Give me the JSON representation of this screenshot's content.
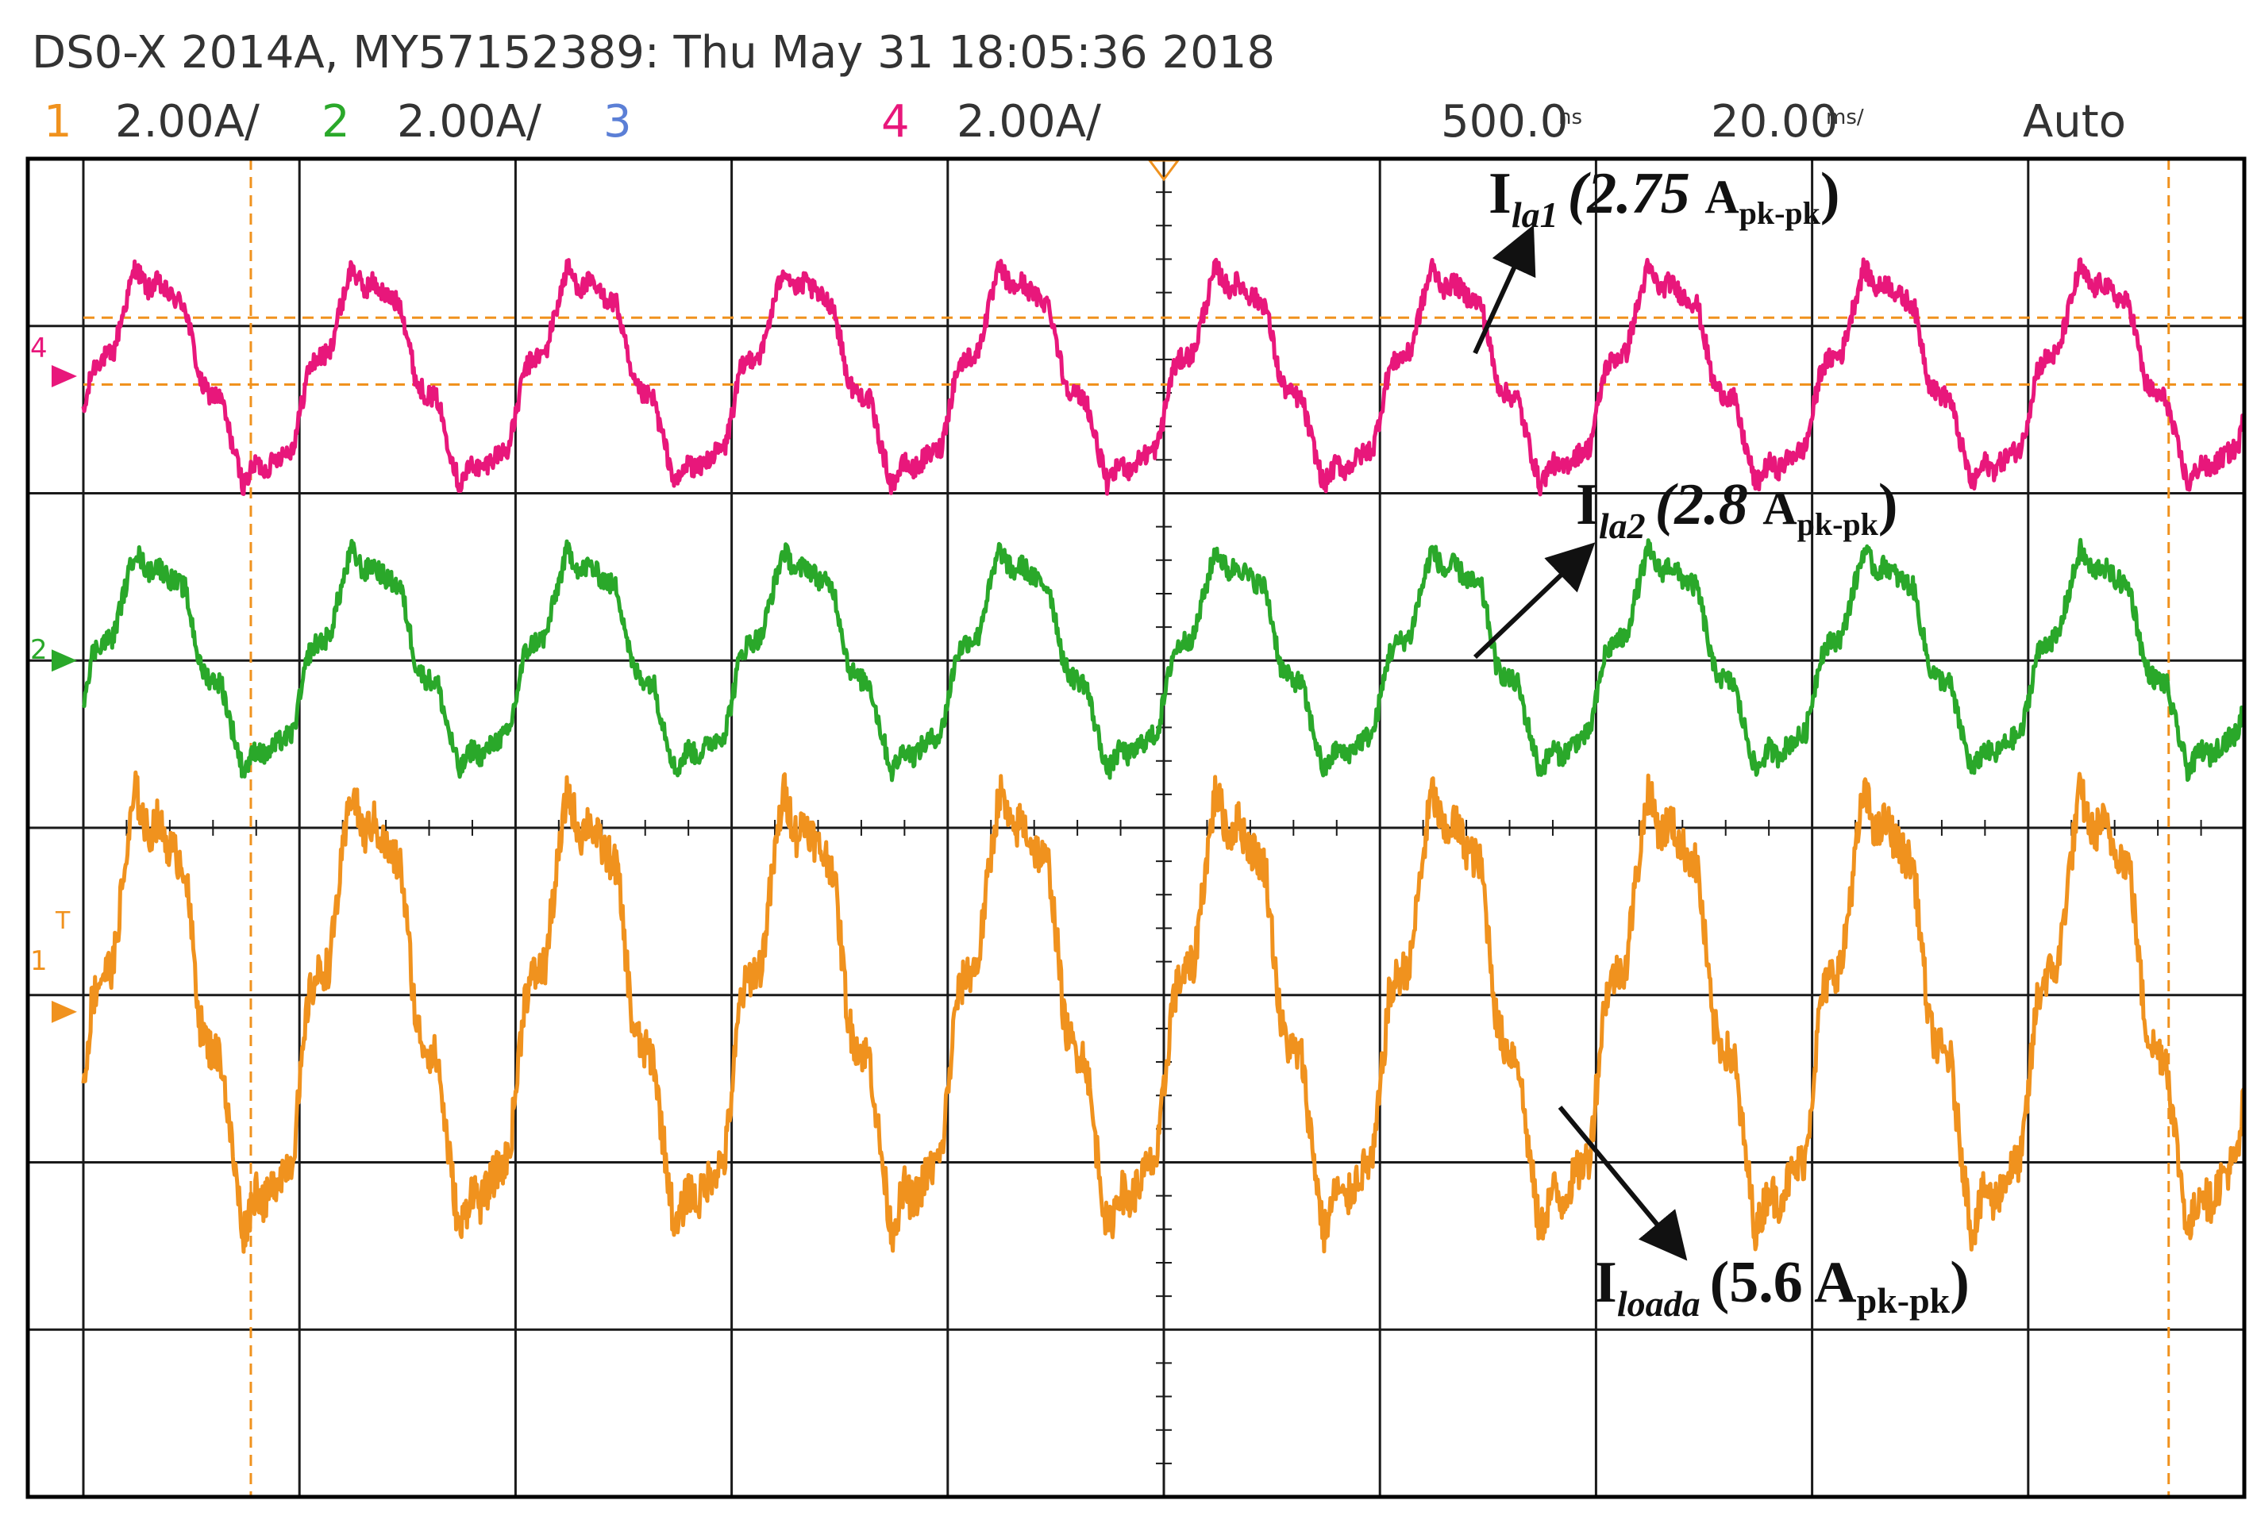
{
  "header": {
    "title": "DS0-X 2014A, MY57152389: Thu May 31 18:05:36 2018",
    "channels": [
      {
        "num": "1",
        "scale": "2.00A/",
        "color": "#f0921e"
      },
      {
        "num": "2",
        "scale": "2.00A/",
        "color": "#2aa82a"
      },
      {
        "num": "3",
        "scale": "",
        "color": "#5b7fd6"
      },
      {
        "num": "4",
        "scale": "2.00A/",
        "color": "#e8177b"
      }
    ],
    "delay": "500.0",
    "delay_unit": "ns",
    "timebase": "20.00",
    "timebase_unit": "ms/",
    "trigger_mode": "Auto"
  },
  "markers": {
    "ch4": "4",
    "ch2": "2",
    "ch1": "1",
    "trigger": "T"
  },
  "annotations": {
    "ila1": {
      "main": "I",
      "sub": "la1",
      "value": "(2.75 ",
      "unit_main": "A",
      "unit_sub": "pk-pk",
      "close": ")"
    },
    "ila2": {
      "main": "I",
      "sub": "la2",
      "value": "(2.8 ",
      "unit_main": "A",
      "unit_sub": "pk-pk",
      "close": ")"
    },
    "iloada": {
      "main": "I",
      "sub": "loada",
      "value": "(5.6 ",
      "unit_main": "A",
      "unit_sub": "pk-pk",
      "close": ")"
    }
  },
  "chart_data": {
    "type": "line",
    "title": "",
    "xlabel": "",
    "ylabel": "",
    "grid": true,
    "x_divisions": 10,
    "y_divisions": 8,
    "time_per_div_ms": 20.0,
    "xlim_ms": [
      -100,
      100
    ],
    "period_ms": 20,
    "cycles_shown": 10,
    "series": [
      {
        "name": "Ila1",
        "channel": 4,
        "color": "#e8177b",
        "volts_per_div": 2.0,
        "offset_div": 2.7,
        "peak_to_peak_A": 2.75
      },
      {
        "name": "Ila2",
        "channel": 2,
        "color": "#2aa82a",
        "volts_per_div": 2.0,
        "offset_div": 1.0,
        "peak_to_peak_A": 2.8
      },
      {
        "name": "Iloada",
        "channel": 1,
        "color": "#f0921e",
        "volts_per_div": 2.0,
        "offset_div": -1.1,
        "peak_to_peak_A": 5.6
      }
    ],
    "cursors_x_ms": [
      -84.5,
      93
    ],
    "cursors_y_div": [
      3.05,
      2.65
    ]
  }
}
